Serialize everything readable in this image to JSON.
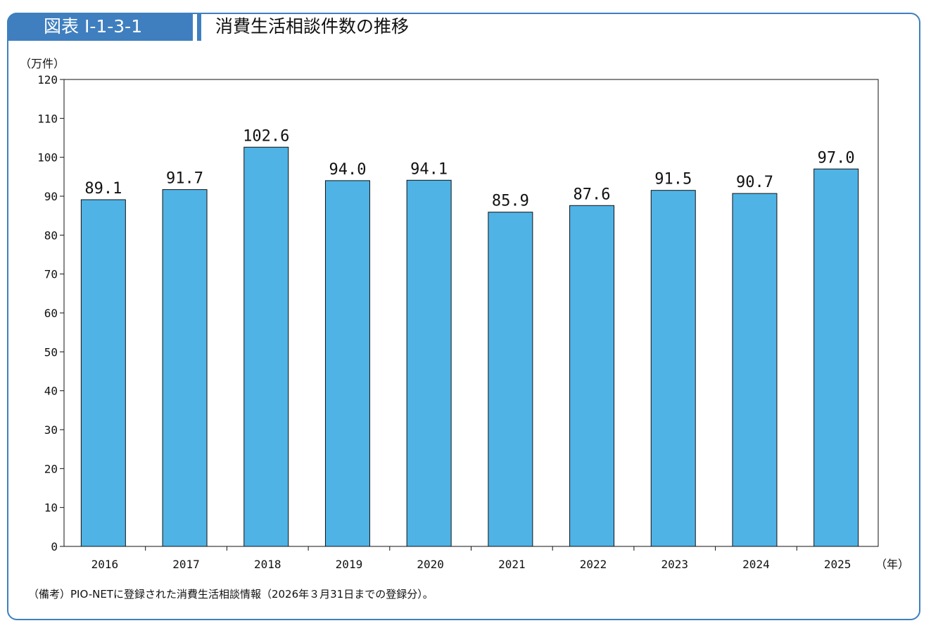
{
  "figure": {
    "number": "図表 I-1-3-1",
    "title": "消費生活相談件数の推移",
    "note": "（備考）PIO-NETに登録された消費生活相談情報（2026年３月31日までの登録分）。",
    "accent_color": "#3f7fbf"
  },
  "chart_data": {
    "type": "bar",
    "categories": [
      "2016",
      "2017",
      "2018",
      "2019",
      "2020",
      "2021",
      "2022",
      "2023",
      "2024",
      "2025"
    ],
    "values": [
      89.1,
      91.7,
      102.6,
      94.0,
      94.1,
      85.9,
      87.6,
      91.5,
      90.7,
      97.0
    ],
    "value_labels": [
      "89.1",
      "91.7",
      "102.6",
      "94.0",
      "94.1",
      "85.9",
      "87.6",
      "91.5",
      "90.7",
      "97.0"
    ],
    "ylabel": "（万件）",
    "xlabel": "（年）",
    "ylim": [
      0,
      120
    ],
    "yticks": [
      0,
      10,
      20,
      30,
      40,
      50,
      60,
      70,
      80,
      90,
      100,
      110,
      120
    ],
    "bar_color": "#4fb3e6",
    "grid": false,
    "legend": false
  }
}
